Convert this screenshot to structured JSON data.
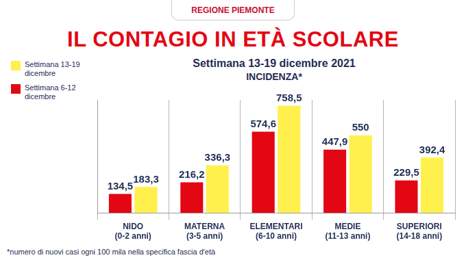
{
  "chart_data": {
    "type": "bar",
    "header": "REGIONE PIEMONTE",
    "title": "IL CONTAGIO IN ETÀ SCOLARE",
    "subtitle": "Settimana 13-19 dicembre 2021",
    "y_label": "INCIDENZA*",
    "footnote": "*numero di nuovi casi ogni 100 mila nella specifica fascia d'età",
    "categories": [
      [
        "NIDO",
        "(0-2 anni)"
      ],
      [
        "MATERNA",
        "(3-5 anni)"
      ],
      [
        "ELEMENTARI",
        "(6-10 anni)"
      ],
      [
        "MEDIE",
        "(11-13 anni)"
      ],
      [
        "SUPERIORI",
        "(14-18 anni)"
      ]
    ],
    "series": [
      {
        "name": "Settimana 6-12 dicembre",
        "color": "#e30613",
        "values": [
          134.5,
          216.2,
          574.6,
          447.9,
          229.5
        ],
        "value_labels": [
          "134,5",
          "216,2",
          "574,6",
          "447,9",
          "229,5"
        ]
      },
      {
        "name": "Settimana 13-19 dicembre",
        "color": "#fff04d",
        "values": [
          183.3,
          336.3,
          758.5,
          550,
          392.4
        ],
        "value_labels": [
          "183,3",
          "336,3",
          "758,5",
          "550",
          "392,4"
        ]
      }
    ],
    "ylim": [
      0,
      800
    ],
    "grid": false,
    "legend": "top-left",
    "data_labels": true,
    "tick_labels": "x"
  }
}
